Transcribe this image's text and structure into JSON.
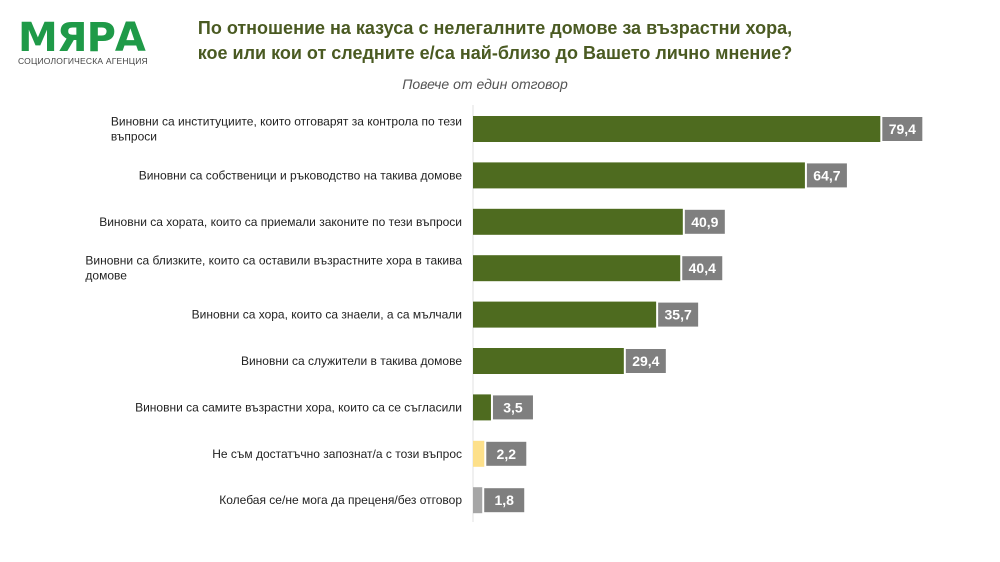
{
  "logo": {
    "name": "МЯРА",
    "subtitle": "СОЦИОЛОГИЧЕСКА АГЕНЦИЯ"
  },
  "chart_data": {
    "type": "bar",
    "orientation": "horizontal",
    "title": "По отношение на казуса с нелегалните домове за възрастни хора, кое или кои от следните е/са най-близо до Вашето лично мнение?",
    "title_lines": [
      "По отношение на казуса с нелегалните домове за възрастни хора,",
      "кое или кои от следните е/са най-близо до Вашето лично мнение?"
    ],
    "subtitle": "Повече от един отговор",
    "categories": [
      [
        "Виновни са институциите, които отговарят за контрола по тези",
        "въпроси"
      ],
      [
        "Виновни са собственици и ръководство на такива домове"
      ],
      [
        "Виновни са хората, които са приемали законите по тези въпроси"
      ],
      [
        "Виновни са близките, които са оставили възрастните хора в такива",
        "домове"
      ],
      [
        "Виновни са хора, които са знаели, а са мълчали"
      ],
      [
        "Виновни са служители в такива домове"
      ],
      [
        "Виновни са самите възрастни хора, които са се съгласили"
      ],
      [
        "Не съм достатъчно запознат/а с този въпрос"
      ],
      [
        "Колебая се/не мога да преценя/без отговор"
      ]
    ],
    "values": [
      79.4,
      64.7,
      40.9,
      40.4,
      35.7,
      29.4,
      3.5,
      2.2,
      1.8
    ],
    "labels": [
      "79,4",
      "64,7",
      "40,9",
      "40,4",
      "35,7",
      "29,4",
      "3,5",
      "2,2",
      "1,8"
    ],
    "colors": [
      "#4e6b1f",
      "#4e6b1f",
      "#4e6b1f",
      "#4e6b1f",
      "#4e6b1f",
      "#4e6b1f",
      "#4e6b1f",
      "#fde08a",
      "#a6a6a6"
    ],
    "label_box_color": "#7f7f7f",
    "xlim": [
      0,
      100
    ],
    "grid": false,
    "legend": "none"
  }
}
